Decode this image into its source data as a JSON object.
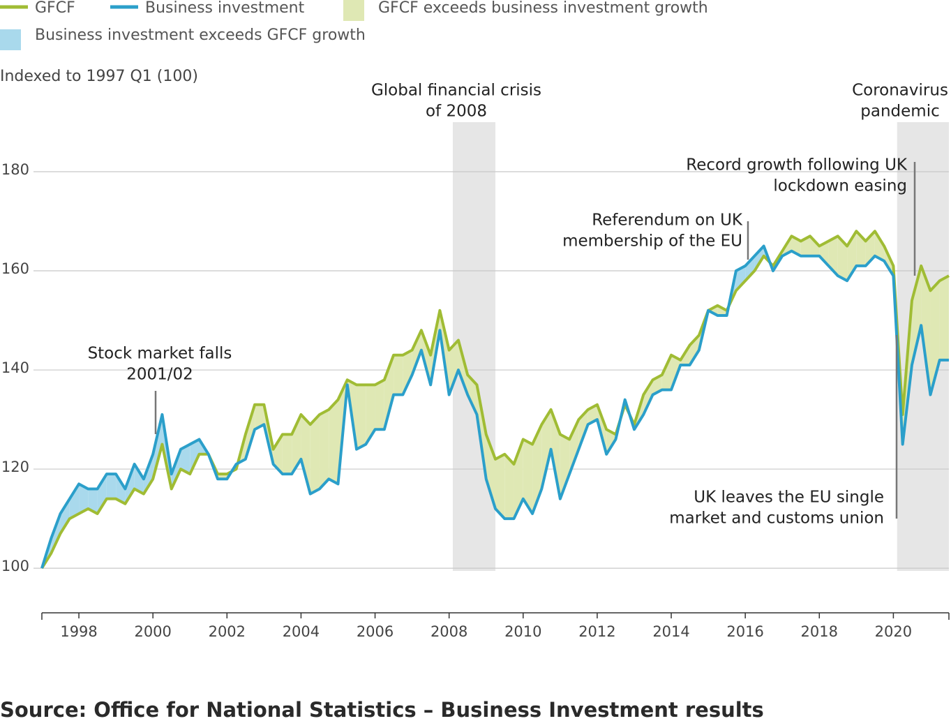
{
  "chart_data": {
    "type": "line",
    "y_axis_label": "Indexed to 1997 Q1 (100)",
    "source": "Source: Office for National Statistics – Business Investment results",
    "xlim": [
      1997,
      2021.5
    ],
    "ylim": [
      91,
      190
    ],
    "xticks": [
      1998,
      2000,
      2002,
      2004,
      2006,
      2008,
      2010,
      2012,
      2014,
      2016,
      2018,
      2020
    ],
    "yticks": [
      100,
      120,
      140,
      160,
      180
    ],
    "grid": true,
    "x": [
      1997,
      1997.25,
      1997.5,
      1997.75,
      1998,
      1998.25,
      1998.5,
      1998.75,
      1999,
      1999.25,
      1999.5,
      1999.75,
      2000,
      2000.25,
      2000.5,
      2000.75,
      2001,
      2001.25,
      2001.5,
      2001.75,
      2002,
      2002.25,
      2002.5,
      2002.75,
      2003,
      2003.25,
      2003.5,
      2003.75,
      2004,
      2004.25,
      2004.5,
      2004.75,
      2005,
      2005.25,
      2005.5,
      2005.75,
      2006,
      2006.25,
      2006.5,
      2006.75,
      2007,
      2007.25,
      2007.5,
      2007.75,
      2008,
      2008.25,
      2008.5,
      2008.75,
      2009,
      2009.25,
      2009.5,
      2009.75,
      2010,
      2010.25,
      2010.5,
      2010.75,
      2011,
      2011.25,
      2011.5,
      2011.75,
      2012,
      2012.25,
      2012.5,
      2012.75,
      2013,
      2013.25,
      2013.5,
      2013.75,
      2014,
      2014.25,
      2014.5,
      2014.75,
      2015,
      2015.25,
      2015.5,
      2015.75,
      2016,
      2016.25,
      2016.5,
      2016.75,
      2017,
      2017.25,
      2017.5,
      2017.75,
      2018,
      2018.25,
      2018.5,
      2018.75,
      2019,
      2019.25,
      2019.5,
      2019.75,
      2020,
      2020.25,
      2020.5,
      2020.75,
      2021,
      2021.25,
      2021.5
    ],
    "series": [
      {
        "name": "GFCF",
        "color": "#a0bc34",
        "values": [
          100,
          103,
          107,
          110,
          111,
          112,
          111,
          114,
          114,
          113,
          116,
          115,
          118,
          125,
          116,
          120,
          119,
          123,
          123,
          119,
          119,
          120,
          127,
          133,
          133,
          124,
          127,
          127,
          131,
          129,
          131,
          132,
          134,
          138,
          137,
          137,
          137,
          138,
          143,
          143,
          144,
          148,
          143,
          152,
          144,
          146,
          139,
          137,
          127,
          122,
          123,
          121,
          126,
          125,
          129,
          132,
          127,
          126,
          130,
          132,
          133,
          128,
          127,
          133,
          129,
          135,
          138,
          139,
          143,
          142,
          145,
          147,
          152,
          153,
          152,
          156,
          158,
          160,
          163,
          161,
          164,
          167,
          166,
          167,
          165,
          166,
          167,
          165,
          168,
          166,
          168,
          165,
          161,
          131,
          154,
          161,
          156,
          158,
          159
        ]
      },
      {
        "name": "Business investment",
        "color": "#2b9fca",
        "values": [
          100,
          106,
          111,
          114,
          117,
          116,
          116,
          119,
          119,
          116,
          121,
          118,
          123,
          131,
          119,
          124,
          125,
          126,
          123,
          118,
          118,
          121,
          122,
          128,
          129,
          121,
          119,
          119,
          122,
          115,
          116,
          118,
          117,
          137,
          124,
          125,
          128,
          128,
          135,
          135,
          139,
          144,
          137,
          148,
          135,
          140,
          135,
          131,
          118,
          112,
          110,
          110,
          114,
          111,
          116,
          124,
          114,
          119,
          124,
          129,
          130,
          123,
          126,
          134,
          128,
          131,
          135,
          136,
          136,
          141,
          141,
          144,
          152,
          151,
          151,
          160,
          161,
          163,
          165,
          160,
          163,
          164,
          163,
          163,
          163,
          161,
          159,
          158,
          161,
          161,
          163,
          162,
          159,
          125,
          141,
          149,
          135,
          142,
          142
        ]
      }
    ],
    "fills": [
      {
        "name": "GFCF exceeds business investment growth",
        "color": "#dfe8b4"
      },
      {
        "name": "Business investment exceeds GFCF growth",
        "color": "#a9d9ec"
      }
    ],
    "shaded_periods": [
      {
        "lines": [
          "Global financial crisis",
          "of 2008"
        ],
        "start": 2008.1,
        "end": 2009.25,
        "color": "#e6e6e6"
      },
      {
        "lines": [
          "Coronavirus",
          "pandemic"
        ],
        "start": 2020.1,
        "end": 2021.5,
        "color": "#e6e6e6"
      }
    ],
    "annotations": [
      {
        "lines": [
          "Stock market falls",
          "2001/02"
        ]
      },
      {
        "lines": [
          "Referendum on UK",
          "membership of the EU"
        ]
      },
      {
        "lines": [
          "Record growth following UK",
          "lockdown easing"
        ]
      },
      {
        "lines": [
          "UK leaves the EU single",
          "market and customs union"
        ]
      }
    ]
  }
}
